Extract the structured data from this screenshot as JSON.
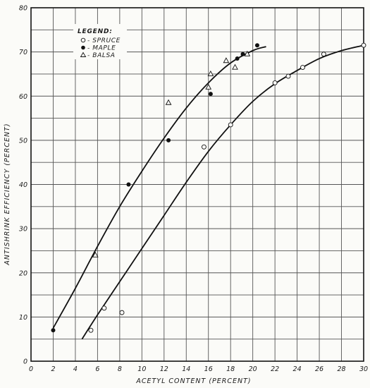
{
  "chart_data": {
    "type": "scatter",
    "xlabel": "ACETYL CONTENT (PERCENT)",
    "ylabel": "ANTISHRINK EFFICIENCY (PERCENT)",
    "xlim": [
      0,
      30
    ],
    "ylim": [
      0,
      80
    ],
    "x_ticks": [
      "0",
      "2",
      "4",
      "6",
      "8",
      "10",
      "12",
      "14",
      "16",
      "18",
      "20",
      "22",
      "24",
      "26",
      "28",
      "30"
    ],
    "y_ticks": [
      "0",
      "10",
      "20",
      "30",
      "40",
      "50",
      "60",
      "70",
      "80"
    ],
    "grid": true,
    "legend": {
      "title": "LEGEND:",
      "placement": "top-left",
      "entries": [
        "- SPRUCE",
        "- MAPLE",
        "- BALSA"
      ]
    },
    "series": [
      {
        "name": "SPRUCE",
        "marker": "open-circle",
        "points": [
          [
            5.4,
            7
          ],
          [
            6.6,
            12
          ],
          [
            8.2,
            11
          ],
          [
            15.6,
            48.5
          ],
          [
            18.0,
            53.5
          ],
          [
            22.0,
            63
          ],
          [
            23.2,
            64.5
          ],
          [
            24.5,
            66.5
          ],
          [
            26.4,
            69.5
          ],
          [
            30.0,
            71.5
          ]
        ]
      },
      {
        "name": "MAPLE",
        "marker": "filled-circle",
        "points": [
          [
            2.0,
            7
          ],
          [
            8.8,
            40
          ],
          [
            12.4,
            50
          ],
          [
            16.2,
            60.5
          ],
          [
            18.6,
            68.5
          ],
          [
            19.1,
            69.5
          ],
          [
            20.4,
            71.5
          ]
        ]
      },
      {
        "name": "BALSA",
        "marker": "open-triangle",
        "points": [
          [
            5.8,
            24
          ],
          [
            12.4,
            58.5
          ],
          [
            16.0,
            62
          ],
          [
            16.2,
            65
          ],
          [
            17.6,
            68
          ],
          [
            18.4,
            66.5
          ],
          [
            19.5,
            69.5
          ]
        ]
      }
    ],
    "curves": [
      {
        "points": [
          [
            2.0,
            7.5
          ],
          [
            4,
            16.5
          ],
          [
            6,
            26
          ],
          [
            8,
            35
          ],
          [
            10,
            43
          ],
          [
            12,
            50.5
          ],
          [
            14,
            57.3
          ],
          [
            16,
            63
          ],
          [
            18,
            67.5
          ],
          [
            20,
            70.3
          ],
          [
            21.2,
            71.2
          ]
        ]
      },
      {
        "points": [
          [
            4.6,
            5
          ],
          [
            6,
            10.5
          ],
          [
            8,
            18
          ],
          [
            10,
            25.5
          ],
          [
            12,
            33
          ],
          [
            14,
            40.5
          ],
          [
            16,
            47.5
          ],
          [
            18,
            53.5
          ],
          [
            20,
            58.8
          ],
          [
            22,
            62.8
          ],
          [
            24,
            65.8
          ],
          [
            26,
            68.5
          ],
          [
            28,
            70.3
          ],
          [
            30,
            71.5
          ]
        ]
      }
    ]
  }
}
